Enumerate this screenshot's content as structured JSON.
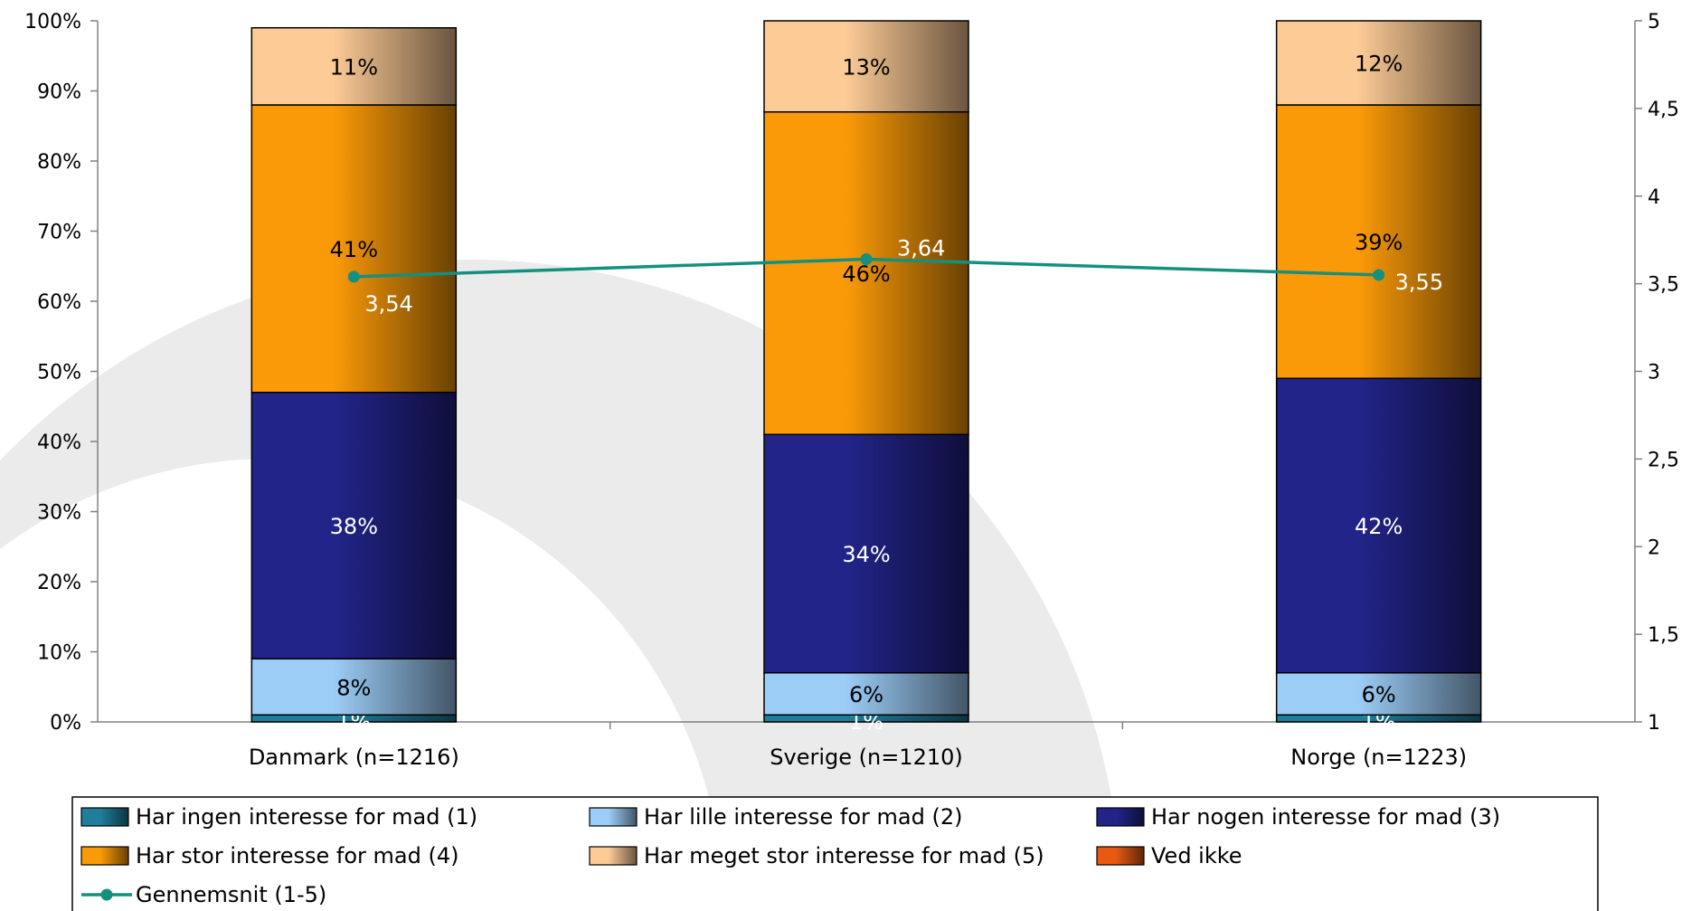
{
  "chart_data": {
    "type": "bar",
    "stacked": true,
    "categories": [
      "Danmark (n=1216)",
      "Sverige (n=1210)",
      "Norge (n=1223)"
    ],
    "series": [
      {
        "name": "Har ingen interesse for mad (1)",
        "values": [
          1,
          1,
          1
        ],
        "labels": [
          "1%",
          "1%",
          "1%"
        ],
        "color": "#1f7f9a"
      },
      {
        "name": "Har lille interesse for mad (2)",
        "values": [
          8,
          6,
          6
        ],
        "labels": [
          "8%",
          "6%",
          "6%"
        ],
        "color": "#9ccdf7"
      },
      {
        "name": "Har nogen interesse for mad (3)",
        "values": [
          38,
          34,
          42
        ],
        "labels": [
          "38%",
          "34%",
          "42%"
        ],
        "color": "#22248a"
      },
      {
        "name": "Har stor interesse for mad (4)",
        "values": [
          41,
          46,
          39
        ],
        "labels": [
          "41%",
          "46%",
          "39%"
        ],
        "color": "#fb9a08"
      },
      {
        "name": "Har meget stor interesse for mad (5)",
        "values": [
          11,
          13,
          12
        ],
        "labels": [
          "11%",
          "13%",
          "12%"
        ],
        "color": "#fccb96"
      },
      {
        "name": "Ved ikke",
        "values": [
          0,
          0,
          0
        ],
        "labels": [
          "",
          "",
          ""
        ],
        "color": "#e85a12"
      }
    ],
    "line_series": {
      "name": "Gennemsnit (1-5)",
      "values": [
        3.54,
        3.64,
        3.55
      ],
      "labels": [
        "3,54",
        "3,64",
        "3,55"
      ],
      "color": "#14907f",
      "axis": "right"
    },
    "y_left": {
      "min": 0,
      "max": 100,
      "ticks": [
        "0%",
        "10%",
        "20%",
        "30%",
        "40%",
        "50%",
        "60%",
        "70%",
        "80%",
        "90%",
        "100%"
      ]
    },
    "y_right": {
      "min": 1,
      "max": 5,
      "ticks": [
        "1",
        "1,5",
        "2",
        "2,5",
        "3",
        "3,5",
        "4",
        "4,5",
        "5"
      ]
    },
    "legend_position": "bottom",
    "grid": false
  }
}
